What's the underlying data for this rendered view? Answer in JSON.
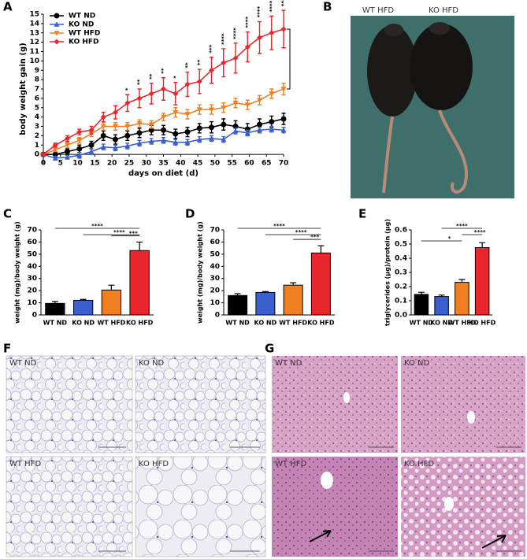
{
  "panels": [
    "A",
    "B",
    "C",
    "D",
    "E",
    "F",
    "G"
  ],
  "images": {
    "B": [
      "WT HFD",
      "KO HFD"
    ],
    "F": [
      "WT ND",
      "KO ND",
      "WT HFD",
      "KO HFD"
    ],
    "G": [
      "WT ND",
      "KO ND",
      "WT HFD",
      "KO HFD"
    ]
  },
  "chart_data": [
    {
      "type": "line",
      "xlabel": "days on diet (d)",
      "ylabel": "body weight gain (g)",
      "x": [
        0,
        3.5,
        7,
        10.5,
        14,
        17.5,
        21,
        24.5,
        28,
        31.5,
        35,
        38.5,
        42,
        45.5,
        49,
        52.5,
        56,
        59.5,
        63,
        66.5,
        70
      ],
      "xlim": [
        0,
        70
      ],
      "xticks": [
        0,
        5,
        10,
        15,
        20,
        25,
        30,
        35,
        40,
        45,
        50,
        55,
        60,
        65,
        70
      ],
      "ylim": [
        -1,
        15
      ],
      "yticks": [
        0,
        1,
        2,
        3,
        4,
        5,
        6,
        7,
        8,
        9,
        10,
        11,
        12,
        13,
        14,
        15
      ],
      "legend": "upper left",
      "series": [
        {
          "name": "WT ND",
          "color": "#000000",
          "marker": "circle",
          "values": [
            0,
            0,
            0.3,
            0.6,
            1,
            2,
            1.6,
            2,
            2.3,
            2.6,
            2.6,
            2.2,
            2.4,
            2.8,
            2.9,
            3.2,
            3,
            2.7,
            3.2,
            3.5,
            3.8
          ],
          "errors": [
            0.2,
            0.3,
            0.3,
            0.4,
            0.4,
            0.5,
            0.5,
            0.5,
            0.5,
            0.5,
            0.5,
            0.5,
            0.5,
            0.5,
            0.6,
            0.6,
            0.6,
            0.6,
            0.6,
            0.6,
            0.6
          ]
        },
        {
          "name": "KO ND",
          "color": "#3a5fcd",
          "marker": "triangle-up",
          "values": [
            0,
            -0.4,
            -0.3,
            -0.1,
            0.3,
            0.8,
            0.7,
            0.9,
            1.2,
            1.4,
            1.5,
            1.3,
            1.3,
            1.6,
            1.7,
            1.6,
            2.5,
            2.3,
            2.6,
            2.7,
            2.6
          ],
          "errors": [
            0.1,
            0.2,
            0.2,
            0.3,
            0.3,
            0.3,
            0.3,
            0.3,
            0.3,
            0.3,
            0.3,
            0.3,
            0.3,
            0.3,
            0.3,
            0.3,
            0.3,
            0.3,
            0.3,
            0.3,
            0.3
          ]
        },
        {
          "name": "WT HFD",
          "color": "#f07f22",
          "marker": "triangle-down",
          "values": [
            0,
            0.5,
            1,
            1.5,
            2.2,
            3,
            3,
            3,
            3.3,
            3.2,
            4,
            4.5,
            4.3,
            4.8,
            4.8,
            5,
            5.5,
            5.3,
            5.8,
            6.5,
            7
          ],
          "errors": [
            0.1,
            0.2,
            0.3,
            0.3,
            0.3,
            0.4,
            0.4,
            0.4,
            0.4,
            0.4,
            0.4,
            0.5,
            0.5,
            0.5,
            0.5,
            0.5,
            0.5,
            0.5,
            0.5,
            0.5,
            0.6
          ]
        },
        {
          "name": "KO HFD",
          "color": "#e8262b",
          "marker": "diamond",
          "values": [
            0,
            1,
            1.7,
            2.4,
            2.6,
            4,
            4.5,
            5.5,
            6,
            6.5,
            7,
            6.5,
            7.5,
            7.8,
            9,
            9.8,
            10.3,
            11.5,
            12.5,
            13,
            13.4
          ],
          "errors": [
            0.1,
            0.2,
            0.3,
            0.3,
            0.4,
            0.5,
            0.7,
            0.9,
            1,
            1.1,
            1.2,
            1.2,
            1.3,
            1.3,
            1.4,
            1.5,
            1.6,
            1.6,
            1.7,
            1.8,
            2
          ]
        }
      ],
      "significance": [
        null,
        null,
        null,
        null,
        null,
        null,
        null,
        "*",
        "**",
        "**",
        "**",
        "*",
        "**",
        "**",
        "***",
        "****",
        "****",
        "****",
        "****",
        "****",
        "****"
      ]
    },
    {
      "type": "bar",
      "ylabel": "weight (mg)/body weight (g)",
      "categories": [
        "WT ND",
        "KO ND",
        "WT HFD",
        "KO HFD"
      ],
      "colors": [
        "#000000",
        "#3a5fcd",
        "#f07f22",
        "#e8262b"
      ],
      "values": [
        9.5,
        12,
        20.5,
        53
      ],
      "errors": [
        1.5,
        0.8,
        4,
        7
      ],
      "ylim": [
        0,
        70
      ],
      "yticks": [
        0,
        10,
        20,
        30,
        40,
        50,
        60,
        70
      ],
      "comparisons": [
        {
          "from": 0,
          "to": 3,
          "label": "****"
        },
        {
          "from": 1,
          "to": 3,
          "label": "****"
        },
        {
          "from": 2,
          "to": 3,
          "label": "***"
        }
      ]
    },
    {
      "type": "bar",
      "ylabel": "weight (mg)/body weight (g)",
      "categories": [
        "WT ND",
        "KO ND",
        "WT HFD",
        "KO HFD"
      ],
      "colors": [
        "#000000",
        "#3a5fcd",
        "#f07f22",
        "#e8262b"
      ],
      "values": [
        16,
        18.5,
        24.5,
        51
      ],
      "errors": [
        1.5,
        0.7,
        2,
        6
      ],
      "ylim": [
        0,
        70
      ],
      "yticks": [
        0,
        10,
        20,
        30,
        40,
        50,
        60,
        70
      ],
      "comparisons": [
        {
          "from": 0,
          "to": 3,
          "label": "****"
        },
        {
          "from": 1,
          "to": 3,
          "label": "****"
        },
        {
          "from": 2,
          "to": 3,
          "label": "***"
        }
      ]
    },
    {
      "type": "bar",
      "ylabel": "triglycerides (µg)/protein (µg)",
      "categories": [
        "WT ND",
        "KO ND",
        "WT HFD",
        "KO HFD"
      ],
      "colors": [
        "#000000",
        "#3a5fcd",
        "#f07f22",
        "#e8262b"
      ],
      "values": [
        0.145,
        0.13,
        0.23,
        0.475
      ],
      "errors": [
        0.015,
        0.01,
        0.02,
        0.035
      ],
      "ylim": [
        0,
        0.6
      ],
      "yticks": [
        {
          "value": 0,
          "label": "0.0"
        },
        0.1,
        0.2,
        0.3,
        0.4,
        0.5,
        0.6
      ],
      "comparisons": [
        {
          "from": 1,
          "to": 3,
          "label": "****"
        },
        {
          "from": 2,
          "to": 3,
          "label": "****"
        },
        {
          "from": 0,
          "to": 2,
          "label": "*"
        }
      ]
    }
  ]
}
